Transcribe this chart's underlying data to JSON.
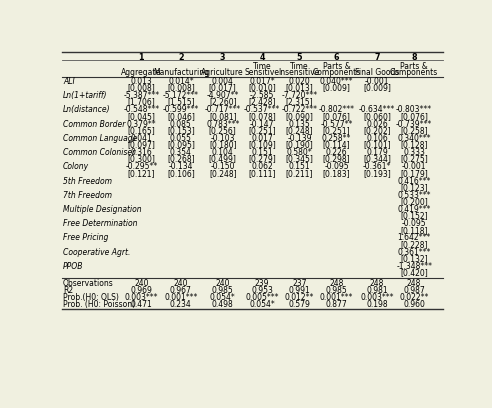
{
  "bg_color": "#f0f0e0",
  "font_size": 5.5,
  "label_font_size": 5.5,
  "header_font_size": 5.8,
  "col_nums": [
    "1",
    "2",
    "3",
    "4",
    "5",
    "6",
    "7",
    "8"
  ],
  "col_subheads": [
    "Aggregate",
    "Manufacturing",
    "Agriculture",
    "Time\nSensitive",
    "Time\nInsensitive",
    "Parts &\nComponents",
    "Final Goods",
    "Parts &\nComponents"
  ],
  "rows": [
    {
      "label": "ALI",
      "values": [
        "0.013",
        "0.014*",
        "0.004",
        "0.017*",
        "0.020",
        "0.040***",
        "-0.001",
        ""
      ],
      "se": [
        "[0.008]",
        "[0.008]",
        "[0.017]",
        "[0.010]",
        "[0.013]",
        "[0.009]",
        "[0.009]",
        ""
      ]
    },
    {
      "label": "Ln(1+tariff)",
      "values": [
        "-5.387***",
        "-5.172***",
        "-4.907**",
        "-2.585",
        "-7.720***",
        "",
        "",
        ""
      ],
      "se": [
        "[1.706]",
        "[1.515]",
        "[2.260]",
        "[2.428]",
        "[2.315]",
        "",
        "",
        ""
      ]
    },
    {
      "label": "Ln(distance)",
      "values": [
        "-0.548***",
        "-0.599***",
        "-0.717***",
        "-0.537***",
        "-0.722***",
        "-0.802***",
        "-0.634***",
        "-0.803***"
      ],
      "se": [
        "[0.045]",
        "[0.046]",
        "[0.081]",
        "[0.078]",
        "[0.090]",
        "[0.076]",
        "[0.060]",
        "[0.076]"
      ]
    },
    {
      "label": "Common Border",
      "values": [
        "0.379**",
        "0.085",
        "0.783***",
        "-0.147",
        "0.135",
        "-0.577**",
        "0.026",
        "-0.739***"
      ],
      "se": [
        "[0.165]",
        "[0.153]",
        "[0.256]",
        "[0.251]",
        "[0.248]",
        "[0.251]",
        "[0.202]",
        "[0.258]"
      ]
    },
    {
      "label": "Common Language",
      "values": [
        "0.041",
        "0.055",
        "-0.103",
        "0.017",
        "-0.139",
        "0.258**",
        "0.106",
        "0.340***"
      ],
      "se": [
        "[0.097]",
        "[0.095]",
        "[0.180]",
        "[0.109]",
        "[0.190]",
        "[0.114]",
        "[0.101]",
        "[0.128]"
      ]
    },
    {
      "label": "Common Coloniser",
      "values": [
        "0.316",
        "0.354",
        "0.104",
        "0.151",
        "0.580*",
        "0.226",
        "0.179",
        "0.333"
      ],
      "se": [
        "[0.300]",
        "[0.268]",
        "[0.499]",
        "[0.279]",
        "[0.345]",
        "[0.298]",
        "[0.344]",
        "[0.275]"
      ]
    },
    {
      "label": "Colony",
      "values": [
        "-0.295**",
        "-0.134",
        "-0.150",
        "0.062",
        "0.151",
        "-0.095",
        "-0.361*",
        "-0.001"
      ],
      "se": [
        "[0.121]",
        "[0.106]",
        "[0.248]",
        "[0.111]",
        "[0.211]",
        "[0.183]",
        "[0.193]",
        "[0.179]"
      ]
    },
    {
      "label": "5th Freedom",
      "values": [
        "",
        "",
        "",
        "",
        "",
        "",
        "",
        "0.416***"
      ],
      "se": [
        "",
        "",
        "",
        "",
        "",
        "",
        "",
        "[0.123]"
      ]
    },
    {
      "label": "7th Freedom",
      "values": [
        "",
        "",
        "",
        "",
        "",
        "",
        "",
        "0.533***"
      ],
      "se": [
        "",
        "",
        "",
        "",
        "",
        "",
        "",
        "[0.200]"
      ]
    },
    {
      "label": "Multiple Designation",
      "values": [
        "",
        "",
        "",
        "",
        "",
        "",
        "",
        "0.419***"
      ],
      "se": [
        "",
        "",
        "",
        "",
        "",
        "",
        "",
        "[0.152]"
      ]
    },
    {
      "label": "Free Determination",
      "values": [
        "",
        "",
        "",
        "",
        "",
        "",
        "",
        "-0.095"
      ],
      "se": [
        "",
        "",
        "",
        "",
        "",
        "",
        "",
        "[0.118]"
      ]
    },
    {
      "label": "Free Pricing",
      "values": [
        "",
        "",
        "",
        "",
        "",
        "",
        "",
        "1.642***"
      ],
      "se": [
        "",
        "",
        "",
        "",
        "",
        "",
        "",
        "[0.228]"
      ]
    },
    {
      "label": "Cooperative Agrt.",
      "values": [
        "",
        "",
        "",
        "",
        "",
        "",
        "",
        "0.361***"
      ],
      "se": [
        "",
        "",
        "",
        "",
        "",
        "",
        "",
        "[0.132]"
      ]
    },
    {
      "label": "PPOB",
      "values": [
        "",
        "",
        "",
        "",
        "",
        "",
        "",
        "-1.348***"
      ],
      "se": [
        "",
        "",
        "",
        "",
        "",
        "",
        "",
        "[0.420]"
      ]
    }
  ],
  "bottom_rows": [
    {
      "label": "Observations",
      "values": [
        "240",
        "240",
        "240",
        "239",
        "237",
        "248",
        "248",
        "248"
      ]
    },
    {
      "label": "R2",
      "values": [
        "0.969",
        "0.967",
        "0.985",
        "0.953",
        "0.991",
        "0.985",
        "0.981",
        "0.987"
      ]
    },
    {
      "label": "Prob.(H0: OLS)",
      "values": [
        "0.003***",
        "0.001***",
        "0.054*",
        "0.005***",
        "0.012**",
        "0.001***",
        "0.003***",
        "0.022**"
      ]
    },
    {
      "label": "Prob. (H0: Poisson)",
      "values": [
        "0.471",
        "0.234",
        "0.498",
        "0.054*",
        "0.579",
        "0.877",
        "0.198",
        "0.960"
      ]
    }
  ]
}
